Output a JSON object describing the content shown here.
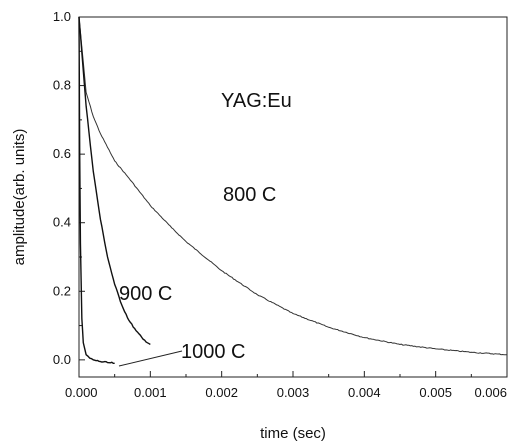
{
  "chart_data": {
    "type": "line",
    "title": "",
    "xlabel": "time (sec)",
    "ylabel": "amplitude(arb. units)",
    "xlim": [
      0,
      0.006
    ],
    "ylim": [
      -0.05,
      1.0
    ],
    "x_ticks": [
      "0.000",
      "0.001",
      "0.002",
      "0.003",
      "0.004",
      "0.005",
      "0.006"
    ],
    "y_ticks": [
      "0.0",
      "0.2",
      "0.4",
      "0.6",
      "0.8",
      "1.0"
    ],
    "grid": false,
    "legend": "none",
    "annotations": [
      "YAG:Eu",
      "800 C",
      "900 C",
      "1000 C"
    ],
    "series": [
      {
        "name": "800 C",
        "color": "#333333",
        "x": [
          0.0,
          0.0001,
          0.0002,
          0.0003,
          0.0005,
          0.0007,
          0.001,
          0.0013,
          0.0015,
          0.002,
          0.0025,
          0.003,
          0.0035,
          0.004,
          0.0045,
          0.005,
          0.0055,
          0.006
        ],
        "y": [
          1.0,
          0.78,
          0.71,
          0.66,
          0.58,
          0.53,
          0.45,
          0.385,
          0.345,
          0.26,
          0.19,
          0.135,
          0.095,
          0.065,
          0.045,
          0.032,
          0.022,
          0.015
        ]
      },
      {
        "name": "900 C",
        "color": "#111111",
        "x": [
          0.0,
          5e-05,
          0.0001,
          0.0002,
          0.0003,
          0.0004,
          0.0005,
          0.0006,
          0.0007,
          0.0008,
          0.0009,
          0.001
        ],
        "y": [
          1.0,
          0.87,
          0.74,
          0.55,
          0.41,
          0.3,
          0.22,
          0.16,
          0.115,
          0.085,
          0.06,
          0.045
        ]
      },
      {
        "name": "1000 C",
        "color": "#111111",
        "x": [
          0.0,
          1e-05,
          2e-05,
          4e-05,
          6e-05,
          0.0001,
          0.00015,
          0.0002,
          0.0003,
          0.0004,
          0.0005
        ],
        "y": [
          1.0,
          0.6,
          0.34,
          0.12,
          0.05,
          0.015,
          0.005,
          0.0,
          -0.005,
          -0.008,
          -0.01
        ]
      }
    ]
  }
}
